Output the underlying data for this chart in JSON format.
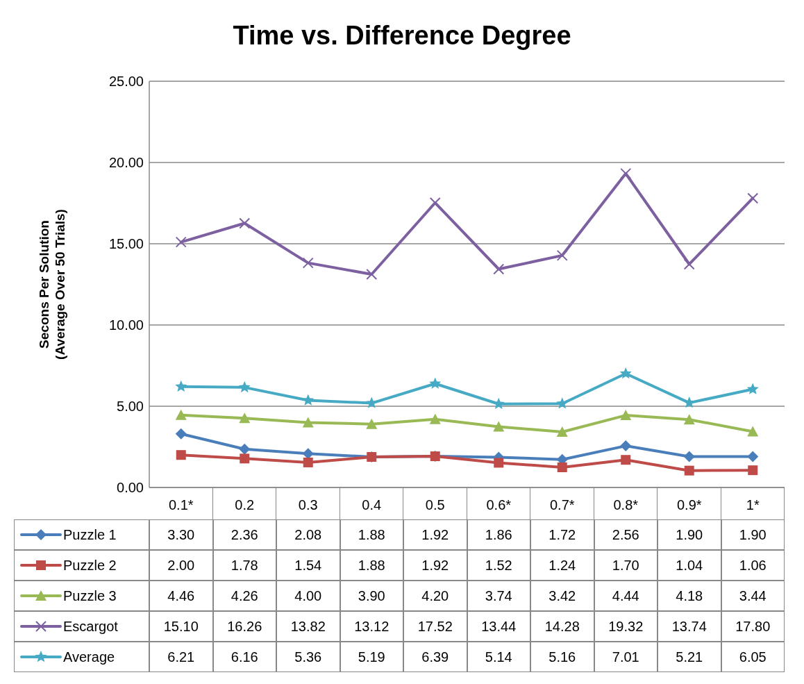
{
  "chart_data": {
    "type": "line",
    "title": "Time vs. Difference Degree",
    "ylabel": "Secons Per Solution\n(Average Over 50 Trials)",
    "categories": [
      "0.1*",
      "0.2",
      "0.3",
      "0.4",
      "0.5",
      "0.6*",
      "0.7*",
      "0.8*",
      "0.9*",
      "1*"
    ],
    "ylim": [
      0,
      25
    ],
    "yticks": [
      {
        "value": 0,
        "label": "0.00"
      },
      {
        "value": 5,
        "label": "5.00"
      },
      {
        "value": 10,
        "label": "10.00"
      },
      {
        "value": 15,
        "label": "15.00"
      },
      {
        "value": 20,
        "label": "20.00"
      },
      {
        "value": 25,
        "label": "25.00"
      }
    ],
    "grid": "y",
    "legend": "bottom left",
    "line_style": "solid",
    "series": [
      {
        "name": "Puzzle 1",
        "color": "#4a7ebb",
        "marker": "diamond",
        "values": [
          3.3,
          2.36,
          2.08,
          1.88,
          1.92,
          1.86,
          1.72,
          2.56,
          1.9,
          1.9
        ],
        "value_labels": [
          "3.30",
          "2.36",
          "2.08",
          "1.88",
          "1.92",
          "1.86",
          "1.72",
          "2.56",
          "1.90",
          "1.90"
        ]
      },
      {
        "name": "Puzzle 2",
        "color": "#be4b48",
        "marker": "square",
        "values": [
          2.0,
          1.78,
          1.54,
          1.88,
          1.92,
          1.52,
          1.24,
          1.7,
          1.04,
          1.06
        ],
        "value_labels": [
          "2.00",
          "1.78",
          "1.54",
          "1.88",
          "1.92",
          "1.52",
          "1.24",
          "1.70",
          "1.04",
          "1.06"
        ]
      },
      {
        "name": "Puzzle 3",
        "color": "#98b954",
        "marker": "triangle",
        "values": [
          4.46,
          4.26,
          4.0,
          3.9,
          4.2,
          3.74,
          3.42,
          4.44,
          4.18,
          3.44
        ],
        "value_labels": [
          "4.46",
          "4.26",
          "4.00",
          "3.90",
          "4.20",
          "3.74",
          "3.42",
          "4.44",
          "4.18",
          "3.44"
        ]
      },
      {
        "name": "Escargot",
        "color": "#7d60a0",
        "marker": "cross",
        "values": [
          15.1,
          16.26,
          13.82,
          13.12,
          17.52,
          13.44,
          14.28,
          19.32,
          13.74,
          17.8
        ],
        "value_labels": [
          "15.10",
          "16.26",
          "13.82",
          "13.12",
          "17.52",
          "13.44",
          "14.28",
          "19.32",
          "13.74",
          "17.80"
        ]
      },
      {
        "name": "Average",
        "color": "#46aac5",
        "marker": "star",
        "values": [
          6.21,
          6.16,
          5.36,
          5.19,
          6.39,
          5.14,
          5.16,
          7.01,
          5.21,
          6.05
        ],
        "value_labels": [
          "6.21",
          "6.16",
          "5.36",
          "5.19",
          "6.39",
          "5.14",
          "5.16",
          "7.01",
          "5.21",
          "6.05"
        ]
      }
    ]
  }
}
